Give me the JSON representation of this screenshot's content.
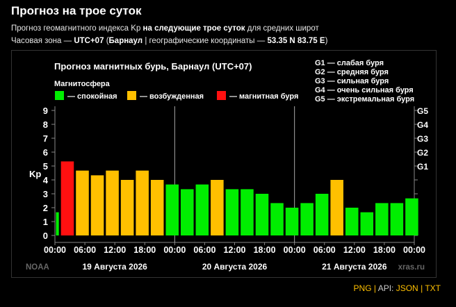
{
  "page": {
    "title": "Прогноз на трое суток",
    "subtitle_pre": "Прогноз геомагнитного индекса Kp",
    "subtitle_bold": "на следующие трое суток",
    "subtitle_post": "для средних широт",
    "tz_pre": "Часовая зона —",
    "tz_value": "UTC+07",
    "tz_city_open": "(",
    "tz_city": "Барнаул",
    "tz_mid": "| географические координаты —",
    "tz_coords": "53.35 N 83.75 E",
    "tz_close": ")"
  },
  "footer": {
    "png": "PNG",
    "api_label": "API:",
    "json": "JSON",
    "separator": "|",
    "txt": "TXT"
  },
  "chart_data": {
    "type": "bar",
    "title": "Прогноз магнитных бурь, Барнаул (UTC+07)",
    "legend_title": "Магнитосфера",
    "legend": [
      {
        "label": "— спокойная",
        "color": "#00ee00"
      },
      {
        "label": "— возбужденная",
        "color": "#ffc000"
      },
      {
        "label": "— магнитная буря",
        "color": "#ff1010"
      }
    ],
    "storm_scale": [
      "G1 — слабая буря",
      "G2 — средняя буря",
      "G3 — сильная буря",
      "G4 — очень сильная буря",
      "G5 — экстремальная буря"
    ],
    "ylabel": "Kp",
    "ylim": [
      0,
      9
    ],
    "yticks": [
      "0",
      "1",
      "2",
      "3",
      "4",
      "5",
      "6",
      "7",
      "8",
      "9"
    ],
    "right_ticks": [
      {
        "value": 5,
        "label": "G1"
      },
      {
        "value": 6,
        "label": "G2"
      },
      {
        "value": 7,
        "label": "G3"
      },
      {
        "value": 8,
        "label": "G4"
      },
      {
        "value": 9,
        "label": "G5"
      }
    ],
    "xticks": [
      "00:00",
      "06:00",
      "12:00",
      "18:00",
      "00:00",
      "06:00",
      "12:00",
      "18:00",
      "00:00",
      "06:00",
      "12:00",
      "18:00",
      "00:00"
    ],
    "days": [
      "19 Августа 2026",
      "20 Августа 2026",
      "21 Августа 2026"
    ],
    "values": [
      1.67,
      5.33,
      4.67,
      4.33,
      4.67,
      4.0,
      4.67,
      4.0,
      3.67,
      3.33,
      3.67,
      4.0,
      3.33,
      3.33,
      3.0,
      2.33,
      2.0,
      2.33,
      3.0,
      4.0,
      2.0,
      1.67,
      2.33,
      2.33,
      2.67
    ],
    "level": [
      "quiet",
      "storm",
      "active",
      "active",
      "active",
      "active",
      "active",
      "active",
      "quiet",
      "quiet",
      "quiet",
      "active",
      "quiet",
      "quiet",
      "quiet",
      "quiet",
      "quiet",
      "quiet",
      "quiet",
      "active",
      "quiet",
      "quiet",
      "quiet",
      "quiet",
      "quiet"
    ],
    "colors": {
      "quiet": "#00ee00",
      "active": "#ffc000",
      "storm": "#ff1010"
    },
    "source_left": "NOAA",
    "source_right": "xras.ru",
    "grid": false
  }
}
